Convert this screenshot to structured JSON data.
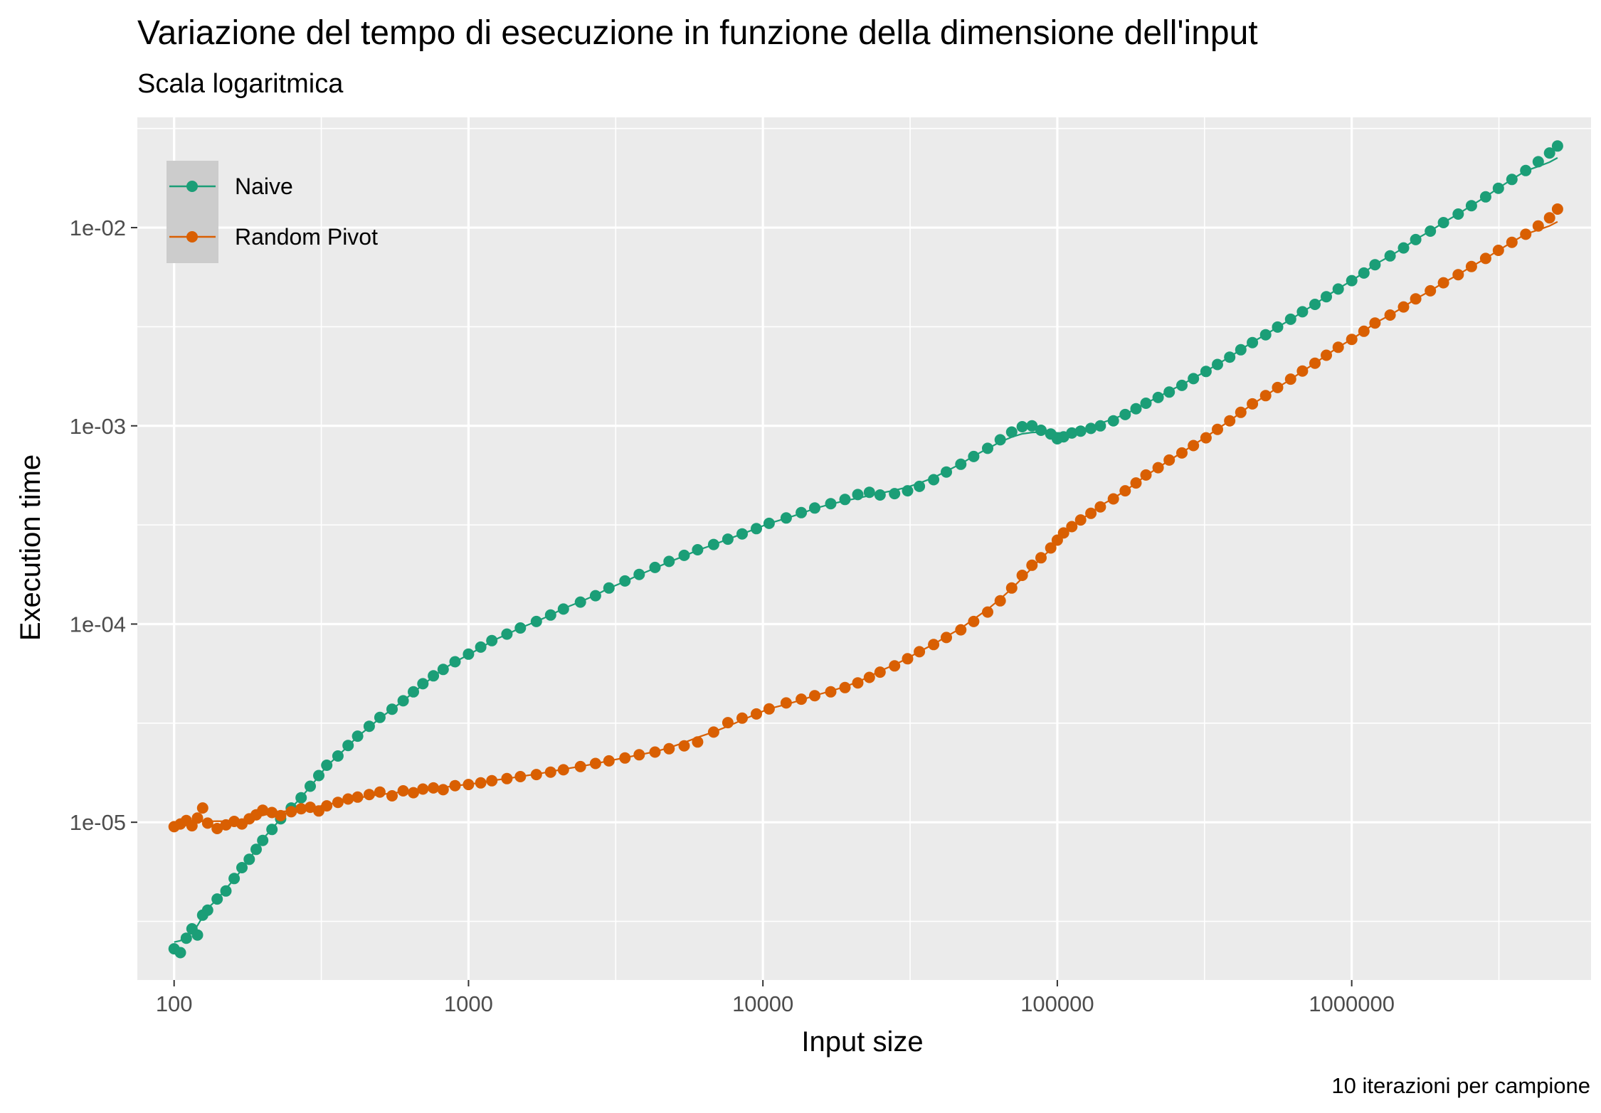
{
  "chart_data": {
    "type": "scatter",
    "title": "Variazione del tempo di esecuzione in funzione della dimensione dell'input",
    "subtitle": "Scala logaritmica",
    "xlabel": "Input size",
    "ylabel": "Execution time",
    "caption": "10 iterazioni per campione",
    "x_scale": "log10",
    "y_scale": "log10",
    "xlim": [
      75,
      6500000
    ],
    "ylim": [
      1.6e-06,
      0.036
    ],
    "x_ticks": [
      {
        "value": 100,
        "label": "100"
      },
      {
        "value": 1000,
        "label": "1000"
      },
      {
        "value": 10000,
        "label": "10000"
      },
      {
        "value": 100000,
        "label": "100000"
      },
      {
        "value": 1000000,
        "label": "1000000"
      }
    ],
    "y_ticks": [
      {
        "value": 1e-05,
        "label": "1e-05"
      },
      {
        "value": 0.0001,
        "label": "1e-04"
      },
      {
        "value": 0.001,
        "label": "1e-03"
      },
      {
        "value": 0.01,
        "label": "1e-02"
      }
    ],
    "grid": true,
    "legend_position": "top-left",
    "series": [
      {
        "name": "Naive",
        "color": "#1b9e77",
        "points": [
          [
            100,
            2.3e-06
          ],
          [
            105,
            2.2e-06
          ],
          [
            110,
            2.6e-06
          ],
          [
            115,
            2.9e-06
          ],
          [
            120,
            2.7e-06
          ],
          [
            125,
            3.4e-06
          ],
          [
            130,
            3.6e-06
          ],
          [
            140,
            4.1e-06
          ],
          [
            150,
            4.5e-06
          ],
          [
            160,
            5.2e-06
          ],
          [
            170,
            5.9e-06
          ],
          [
            180,
            6.5e-06
          ],
          [
            190,
            7.3e-06
          ],
          [
            200,
            8.1e-06
          ],
          [
            215,
            9.2e-06
          ],
          [
            230,
            1.04e-05
          ],
          [
            250,
            1.18e-05
          ],
          [
            270,
            1.33e-05
          ],
          [
            290,
            1.52e-05
          ],
          [
            310,
            1.72e-05
          ],
          [
            330,
            1.94e-05
          ],
          [
            360,
            2.16e-05
          ],
          [
            390,
            2.44e-05
          ],
          [
            420,
            2.72e-05
          ],
          [
            460,
            3.05e-05
          ],
          [
            500,
            3.38e-05
          ],
          [
            550,
            3.72e-05
          ],
          [
            600,
            4.1e-05
          ],
          [
            650,
            4.55e-05
          ],
          [
            700,
            5e-05
          ],
          [
            760,
            5.48e-05
          ],
          [
            820,
            5.9e-05
          ],
          [
            900,
            6.45e-05
          ],
          [
            1000,
            7.05e-05
          ],
          [
            1100,
            7.65e-05
          ],
          [
            1200,
            8.25e-05
          ],
          [
            1350,
            8.9e-05
          ],
          [
            1500,
            9.55e-05
          ],
          [
            1700,
            0.000103
          ],
          [
            1900,
            0.000111
          ],
          [
            2100,
            0.000119
          ],
          [
            2400,
            0.000129
          ],
          [
            2700,
            0.000139
          ],
          [
            3000,
            0.000152
          ],
          [
            3400,
            0.000165
          ],
          [
            3800,
            0.000178
          ],
          [
            4300,
            0.000193
          ],
          [
            4800,
            0.000207
          ],
          [
            5400,
            0.000222
          ],
          [
            6000,
            0.000237
          ],
          [
            6800,
            0.000252
          ],
          [
            7600,
            0.000268
          ],
          [
            8500,
            0.000285
          ],
          [
            9500,
            0.000303
          ],
          [
            10500,
            0.000322
          ],
          [
            12000,
            0.000343
          ],
          [
            13500,
            0.000365
          ],
          [
            15000,
            0.000385
          ],
          [
            17000,
            0.000405
          ],
          [
            19000,
            0.000425
          ],
          [
            21000,
            0.00045
          ],
          [
            23000,
            0.000462
          ],
          [
            25000,
            0.000448
          ],
          [
            28000,
            0.000455
          ],
          [
            31000,
            0.00047
          ],
          [
            34000,
            0.000495
          ],
          [
            38000,
            0.000535
          ],
          [
            42000,
            0.000585
          ],
          [
            47000,
            0.00064
          ],
          [
            52000,
            0.0007
          ],
          [
            58000,
            0.00077
          ],
          [
            64000,
            0.00085
          ],
          [
            70000,
            0.00093
          ],
          [
            76000,
            0.00099
          ],
          [
            82000,
            0.001
          ],
          [
            88000,
            0.00095
          ],
          [
            95000,
            0.00091
          ],
          [
            100000,
            0.00086
          ],
          [
            105000,
            0.00088
          ],
          [
            112000,
            0.00092
          ],
          [
            120000,
            0.00094
          ],
          [
            130000,
            0.00097
          ],
          [
            140000,
            0.001
          ],
          [
            155000,
            0.00106
          ],
          [
            170000,
            0.00114
          ],
          [
            185000,
            0.00122
          ],
          [
            200000,
            0.0013
          ],
          [
            220000,
            0.00139
          ],
          [
            240000,
            0.00148
          ],
          [
            265000,
            0.0016
          ],
          [
            290000,
            0.00173
          ],
          [
            320000,
            0.00188
          ],
          [
            350000,
            0.00204
          ],
          [
            385000,
            0.00222
          ],
          [
            420000,
            0.00242
          ],
          [
            460000,
            0.00263
          ],
          [
            510000,
            0.00288
          ],
          [
            560000,
            0.00315
          ],
          [
            620000,
            0.00345
          ],
          [
            680000,
            0.00376
          ],
          [
            750000,
            0.0041
          ],
          [
            820000,
            0.00448
          ],
          [
            900000,
            0.0049
          ],
          [
            1000000,
            0.0054
          ],
          [
            1100000,
            0.0059
          ],
          [
            1200000,
            0.0065
          ],
          [
            1350000,
            0.0072
          ],
          [
            1500000,
            0.0079
          ],
          [
            1650000,
            0.0087
          ],
          [
            1850000,
            0.0096
          ],
          [
            2050000,
            0.0106
          ],
          [
            2300000,
            0.0117
          ],
          [
            2550000,
            0.0129
          ],
          [
            2850000,
            0.0143
          ],
          [
            3150000,
            0.0158
          ],
          [
            3500000,
            0.0175
          ],
          [
            3900000,
            0.0194
          ],
          [
            4300000,
            0.0215
          ],
          [
            4700000,
            0.0238
          ],
          [
            5000000,
            0.0258
          ]
        ]
      },
      {
        "name": "Random Pivot",
        "color": "#d95f02",
        "points": [
          [
            100,
            9.5e-06
          ],
          [
            105,
            9.8e-06
          ],
          [
            110,
            1.02e-05
          ],
          [
            115,
            9.6e-06
          ],
          [
            120,
            1.05e-05
          ],
          [
            125,
            1.18e-05
          ],
          [
            130,
            9.9e-06
          ],
          [
            140,
            9.3e-06
          ],
          [
            150,
            9.7e-06
          ],
          [
            160,
            1.01e-05
          ],
          [
            170,
            9.8e-06
          ],
          [
            180,
            1.04e-05
          ],
          [
            190,
            1.09e-05
          ],
          [
            200,
            1.15e-05
          ],
          [
            215,
            1.12e-05
          ],
          [
            230,
            1.08e-05
          ],
          [
            250,
            1.13e-05
          ],
          [
            270,
            1.17e-05
          ],
          [
            290,
            1.19e-05
          ],
          [
            310,
            1.14e-05
          ],
          [
            330,
            1.21e-05
          ],
          [
            360,
            1.26e-05
          ],
          [
            390,
            1.31e-05
          ],
          [
            420,
            1.34e-05
          ],
          [
            460,
            1.38e-05
          ],
          [
            500,
            1.42e-05
          ],
          [
            550,
            1.36e-05
          ],
          [
            600,
            1.44e-05
          ],
          [
            650,
            1.41e-05
          ],
          [
            700,
            1.47e-05
          ],
          [
            760,
            1.49e-05
          ],
          [
            820,
            1.46e-05
          ],
          [
            900,
            1.53e-05
          ],
          [
            1000,
            1.55e-05
          ],
          [
            1100,
            1.58e-05
          ],
          [
            1200,
            1.62e-05
          ],
          [
            1350,
            1.66e-05
          ],
          [
            1500,
            1.7e-05
          ],
          [
            1700,
            1.74e-05
          ],
          [
            1900,
            1.79e-05
          ],
          [
            2100,
            1.84e-05
          ],
          [
            2400,
            1.91e-05
          ],
          [
            2700,
            1.98e-05
          ],
          [
            3000,
            2.04e-05
          ],
          [
            3400,
            2.11e-05
          ],
          [
            3800,
            2.19e-05
          ],
          [
            4300,
            2.26e-05
          ],
          [
            4800,
            2.35e-05
          ],
          [
            5400,
            2.43e-05
          ],
          [
            6000,
            2.54e-05
          ],
          [
            6800,
            2.85e-05
          ],
          [
            7600,
            3.18e-05
          ],
          [
            8500,
            3.35e-05
          ],
          [
            9500,
            3.52e-05
          ],
          [
            10500,
            3.73e-05
          ],
          [
            12000,
            4e-05
          ],
          [
            13500,
            4.18e-05
          ],
          [
            15000,
            4.35e-05
          ],
          [
            17000,
            4.55e-05
          ],
          [
            19000,
            4.78e-05
          ],
          [
            21000,
            5.05e-05
          ],
          [
            23000,
            5.38e-05
          ],
          [
            25000,
            5.72e-05
          ],
          [
            28000,
            6.15e-05
          ],
          [
            31000,
            6.68e-05
          ],
          [
            34000,
            7.25e-05
          ],
          [
            38000,
            7.88e-05
          ],
          [
            42000,
            8.55e-05
          ],
          [
            47000,
            9.35e-05
          ],
          [
            52000,
            0.000103
          ],
          [
            58000,
            0.000115
          ],
          [
            64000,
            0.000131
          ],
          [
            70000,
            0.000152
          ],
          [
            76000,
            0.000176
          ],
          [
            82000,
            0.000198
          ],
          [
            88000,
            0.000216
          ],
          [
            95000,
            0.000242
          ],
          [
            100000,
            0.000265
          ],
          [
            105000,
            0.000288
          ],
          [
            112000,
            0.00031
          ],
          [
            120000,
            0.000335
          ],
          [
            130000,
            0.000362
          ],
          [
            140000,
            0.00039
          ],
          [
            155000,
            0.000428
          ],
          [
            170000,
            0.00047
          ],
          [
            185000,
            0.000515
          ],
          [
            200000,
            0.000565
          ],
          [
            220000,
            0.000615
          ],
          [
            240000,
            0.000672
          ],
          [
            265000,
            0.00073
          ],
          [
            290000,
            0.000795
          ],
          [
            320000,
            0.00087
          ],
          [
            350000,
            0.00096
          ],
          [
            385000,
            0.00106
          ],
          [
            420000,
            0.00117
          ],
          [
            460000,
            0.00129
          ],
          [
            510000,
            0.00142
          ],
          [
            560000,
            0.00156
          ],
          [
            620000,
            0.00172
          ],
          [
            680000,
            0.00189
          ],
          [
            750000,
            0.00207
          ],
          [
            820000,
            0.00227
          ],
          [
            900000,
            0.00249
          ],
          [
            1000000,
            0.00273
          ],
          [
            1100000,
            0.003
          ],
          [
            1200000,
            0.0033
          ],
          [
            1350000,
            0.00362
          ],
          [
            1500000,
            0.00398
          ],
          [
            1650000,
            0.00437
          ],
          [
            1850000,
            0.0048
          ],
          [
            2050000,
            0.00527
          ],
          [
            2300000,
            0.00579
          ],
          [
            2550000,
            0.00636
          ],
          [
            2850000,
            0.00699
          ],
          [
            3150000,
            0.00768
          ],
          [
            3500000,
            0.00843
          ],
          [
            3900000,
            0.00926
          ],
          [
            4300000,
            0.0102
          ],
          [
            4700000,
            0.0112
          ],
          [
            5000000,
            0.0124
          ]
        ]
      }
    ]
  }
}
